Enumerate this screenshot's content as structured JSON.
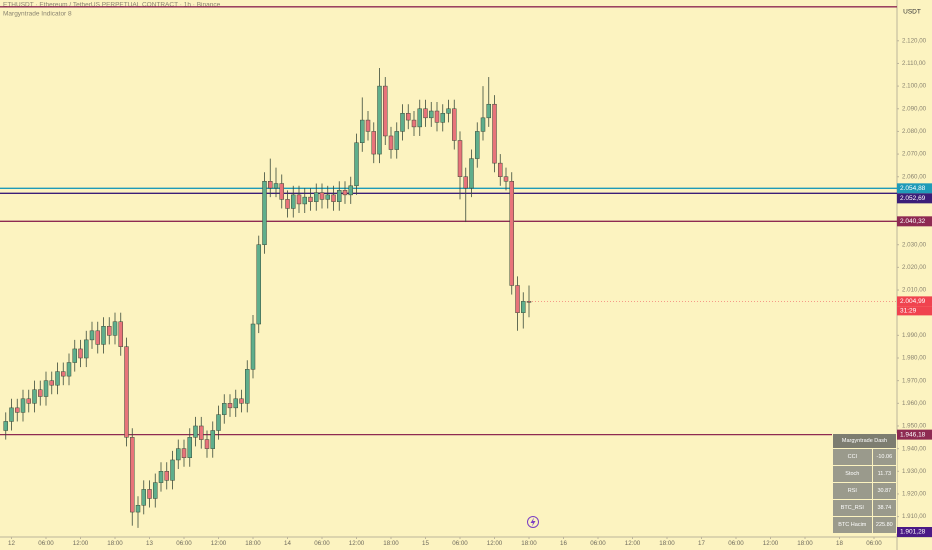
{
  "header": {
    "symbol": "ETHUSDT · Ethereum / TetherUS PERPETUAL CONTRACT · 1h · Binance",
    "indicator": "Margyntrade Indicator 8",
    "currency": "USDT"
  },
  "chart_data": {
    "type": "candlestick",
    "x": [
      -1,
      0,
      1,
      2,
      3,
      4,
      5,
      6,
      7,
      8,
      9,
      10,
      11,
      12,
      13,
      14,
      15,
      16,
      17,
      18,
      19,
      20,
      21,
      22,
      23,
      24,
      25,
      26,
      27,
      28,
      29,
      30,
      31,
      32,
      33,
      34,
      35,
      36,
      37,
      38,
      39,
      40,
      41,
      42,
      43,
      44,
      45,
      46,
      47,
      48,
      49,
      50,
      51,
      52,
      53,
      54,
      55,
      56,
      57,
      58,
      59,
      60,
      61,
      62,
      63,
      64,
      65,
      66,
      67,
      68,
      69,
      70,
      71,
      72,
      73,
      74,
      75,
      76,
      77,
      78,
      79,
      80,
      81,
      82,
      83,
      84,
      85,
      86,
      87,
      88,
      89,
      90
    ],
    "open": [
      1948,
      1952,
      1958,
      1956,
      1962,
      1960,
      1966,
      1963,
      1970,
      1968,
      1974,
      1972,
      1978,
      1984,
      1980,
      1988,
      1992,
      1986,
      1994,
      1990,
      1996,
      1985,
      1945,
      1912,
      1915,
      1922,
      1918,
      1925,
      1930,
      1926,
      1935,
      1940,
      1936,
      1945,
      1950,
      1944,
      1940,
      1948,
      1955,
      1960,
      1958,
      1962,
      1960,
      1975,
      1995,
      2030,
      2058,
      2055,
      2057,
      2050,
      2046,
      2052,
      2048,
      2051,
      2049,
      2053,
      2050,
      2052,
      2049,
      2054,
      2052,
      2056,
      2075,
      2085,
      2080,
      2070,
      2100,
      2078,
      2072,
      2080,
      2088,
      2085,
      2082,
      2090,
      2086,
      2089,
      2084,
      2088,
      2090,
      2076,
      2060,
      2055,
      2068,
      2080,
      2086,
      2092,
      2066,
      2060,
      2058,
      2012,
      2000,
      2005
    ],
    "high": [
      1956,
      1962,
      1962,
      1966,
      1966,
      1970,
      1970,
      1974,
      1974,
      1978,
      1978,
      1982,
      1988,
      1988,
      1992,
      1996,
      1996,
      1998,
      1998,
      2000,
      2000,
      1989,
      1949,
      1919,
      1926,
      1926,
      1929,
      1934,
      1934,
      1939,
      1944,
      1944,
      1949,
      1954,
      1954,
      1948,
      1952,
      1959,
      1964,
      1964,
      1966,
      1966,
      1979,
      1999,
      2034,
      2062,
      2068,
      2064,
      2061,
      2054,
      2056,
      2056,
      2055,
      2055,
      2057,
      2057,
      2056,
      2056,
      2058,
      2058,
      2060,
      2079,
      2095,
      2089,
      2084,
      2108,
      2104,
      2082,
      2084,
      2092,
      2092,
      2089,
      2094,
      2094,
      2093,
      2093,
      2092,
      2094,
      2094,
      2080,
      2064,
      2072,
      2084,
      2100,
      2104,
      2096,
      2070,
      2064,
      2062,
      2016,
      2009,
      2012
    ],
    "low": [
      1944,
      1948,
      1952,
      1952,
      1956,
      1956,
      1959,
      1959,
      1964,
      1964,
      1968,
      1968,
      1974,
      1976,
      1976,
      1984,
      1982,
      1982,
      1986,
      1986,
      1981,
      1941,
      1906,
      1905,
      1911,
      1914,
      1914,
      1921,
      1922,
      1922,
      1931,
      1932,
      1932,
      1941,
      1940,
      1936,
      1936,
      1944,
      1951,
      1954,
      1954,
      1956,
      1956,
      1971,
      1991,
      2026,
      2051,
      2051,
      2046,
      2042,
      2042,
      2044,
      2044,
      2045,
      2045,
      2046,
      2046,
      2045,
      2045,
      2048,
      2048,
      2052,
      2071,
      2076,
      2066,
      2066,
      2074,
      2068,
      2068,
      2076,
      2081,
      2078,
      2078,
      2082,
      2082,
      2080,
      2080,
      2084,
      2072,
      2050,
      2040,
      2051,
      2064,
      2076,
      2082,
      2062,
      2056,
      2054,
      2008,
      1992,
      1993,
      1998
    ],
    "close": [
      1952,
      1958,
      1956,
      1962,
      1960,
      1966,
      1963,
      1970,
      1968,
      1974,
      1972,
      1978,
      1984,
      1980,
      1988,
      1992,
      1986,
      1994,
      1990,
      1996,
      1985,
      1945,
      1912,
      1915,
      1922,
      1918,
      1925,
      1930,
      1926,
      1935,
      1940,
      1936,
      1945,
      1950,
      1944,
      1940,
      1948,
      1955,
      1960,
      1958,
      1962,
      1960,
      1975,
      1995,
      2030,
      2058,
      2055,
      2057,
      2050,
      2046,
      2052,
      2048,
      2051,
      2049,
      2053,
      2050,
      2052,
      2049,
      2054,
      2052,
      2056,
      2075,
      2085,
      2080,
      2070,
      2100,
      2078,
      2072,
      2080,
      2088,
      2085,
      2082,
      2090,
      2086,
      2089,
      2084,
      2088,
      2090,
      2076,
      2060,
      2055,
      2068,
      2080,
      2086,
      2092,
      2066,
      2060,
      2058,
      2012,
      2000,
      2005,
      2004.99
    ],
    "up_color": "#5fae8c",
    "down_color": "#e8737a",
    "xlim": [
      -2,
      154
    ],
    "ylim": [
      1901,
      2138
    ],
    "xticks": [
      {
        "value": 0,
        "label": "12"
      },
      {
        "value": 6,
        "label": "06:00"
      },
      {
        "value": 12,
        "label": "12:00"
      },
      {
        "value": 18,
        "label": "18:00"
      },
      {
        "value": 24,
        "label": "13"
      },
      {
        "value": 30,
        "label": "06:00"
      },
      {
        "value": 36,
        "label": "12:00"
      },
      {
        "value": 42,
        "label": "18:00"
      },
      {
        "value": 48,
        "label": "14"
      },
      {
        "value": 54,
        "label": "06:00"
      },
      {
        "value": 60,
        "label": "12:00"
      },
      {
        "value": 66,
        "label": "18:00"
      },
      {
        "value": 72,
        "label": "15"
      },
      {
        "value": 78,
        "label": "06:00"
      },
      {
        "value": 84,
        "label": "12:00"
      },
      {
        "value": 90,
        "label": "18:00"
      },
      {
        "value": 96,
        "label": "16"
      },
      {
        "value": 102,
        "label": "06:00"
      },
      {
        "value": 108,
        "label": "12:00"
      },
      {
        "value": 114,
        "label": "18:00"
      },
      {
        "value": 120,
        "label": "17"
      },
      {
        "value": 126,
        "label": "06:00"
      },
      {
        "value": 132,
        "label": "12:00"
      },
      {
        "value": 138,
        "label": "18:00"
      },
      {
        "value": 144,
        "label": "18"
      },
      {
        "value": 150,
        "label": "06:00"
      }
    ],
    "yticks": [
      {
        "value": 1910,
        "label": "1.910,00"
      },
      {
        "value": 1920,
        "label": "1.920,00"
      },
      {
        "value": 1930,
        "label": "1.930,00"
      },
      {
        "value": 1940,
        "label": "1.940,00"
      },
      {
        "value": 1950,
        "label": "1.950,00"
      },
      {
        "value": 1960,
        "label": "1.960,00"
      },
      {
        "value": 1970,
        "label": "1.970,00"
      },
      {
        "value": 1980,
        "label": "1.980,00"
      },
      {
        "value": 1990,
        "label": "1.990,00"
      },
      {
        "value": 2000,
        "label": "2.000,00"
      },
      {
        "value": 2010,
        "label": "2.010,00"
      },
      {
        "value": 2020,
        "label": "2.020,00"
      },
      {
        "value": 2030,
        "label": "2.030,00"
      },
      {
        "value": 2040,
        "label": "2.040,00"
      },
      {
        "value": 2050,
        "label": "2.050,00"
      },
      {
        "value": 2060,
        "label": "2.060,00"
      },
      {
        "value": 2070,
        "label": "2.070,00"
      },
      {
        "value": 2080,
        "label": "2.080,00"
      },
      {
        "value": 2090,
        "label": "2.090,00"
      },
      {
        "value": 2100,
        "label": "2.100,00"
      },
      {
        "value": 2110,
        "label": "2.110,00"
      },
      {
        "value": 2120,
        "label": "2.120,00"
      }
    ],
    "grid": false,
    "levels": [
      {
        "value": 2135,
        "color": "#8e2a52",
        "line": true
      },
      {
        "value": 2054.88,
        "label": "2.054,88",
        "color": "#1f9bb8",
        "line": true
      },
      {
        "value": 2052.69,
        "label": "2.052,69",
        "color": "#3b1e78",
        "line": true
      },
      {
        "value": 2040.32,
        "label": "2.040,32",
        "color": "#8e2a52",
        "line": true
      },
      {
        "value": 1946.18,
        "label": "1.946,18",
        "color": "#8e2a52",
        "line": true
      },
      {
        "value": 1901.28,
        "label": "1.901,28",
        "color": "#4a1a86",
        "line": false
      }
    ],
    "last_price": {
      "value": 2004.99,
      "label": "2.004,99",
      "countdown": "31:29",
      "color": "#f0434f"
    }
  },
  "table": {
    "title": "Margyntrade Dash",
    "rows": [
      [
        "CCI",
        "-10.06"
      ],
      [
        "Stoch",
        "11.73"
      ],
      [
        "RSI",
        "30.87"
      ],
      [
        "BTC_RSI",
        "38.74"
      ],
      [
        "BTC Hacim",
        "225.80"
      ]
    ]
  }
}
